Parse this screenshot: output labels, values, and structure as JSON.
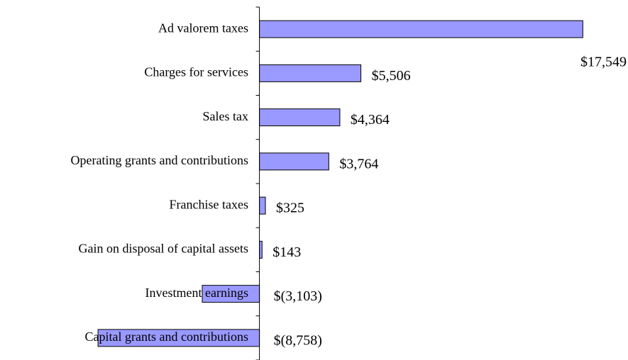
{
  "chart_data": {
    "type": "barh",
    "categories": [
      "Ad valorem taxes",
      "Charges for services",
      "Sales tax",
      "Operating grants and contributions",
      "Franchise taxes",
      "Gain on disposal of capital assets",
      "Investment earnings",
      "Capital grants and contributions"
    ],
    "values": [
      17549,
      5506,
      4364,
      3764,
      325,
      143,
      -3103,
      -8758
    ],
    "value_labels": [
      "$17,549",
      "$5,506",
      "$4,364",
      "$3,764",
      "$325",
      "$143",
      "$(3,103)",
      "$(8,758)"
    ],
    "color": "#9999ff",
    "xlim": [
      -14000,
      20000
    ]
  }
}
